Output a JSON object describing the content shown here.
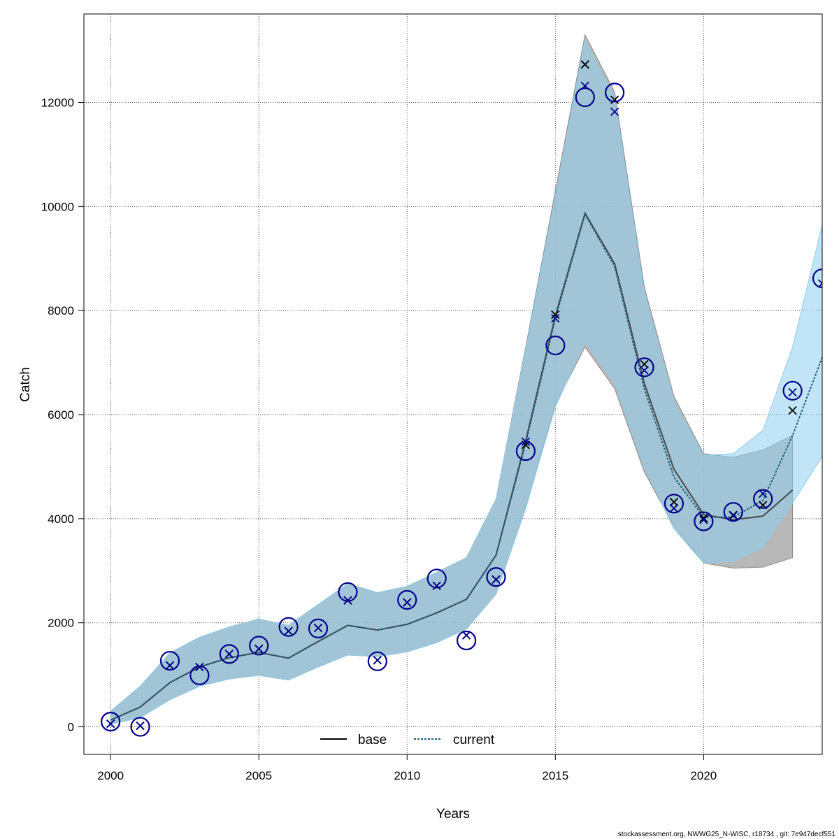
{
  "chart_data": {
    "type": "line",
    "xlabel": "Years",
    "ylabel": "Catch",
    "xlim": [
      1999.1,
      2024
    ],
    "ylim": [
      -530,
      13700
    ],
    "x_ticks": [
      2000,
      2005,
      2010,
      2015,
      2020
    ],
    "y_ticks": [
      0,
      2000,
      4000,
      6000,
      8000,
      10000,
      12000
    ],
    "grid": true,
    "legend_position": "bottom-center",
    "colors": {
      "base_line": "#4a4a4a",
      "base_band": "#a6a6a6",
      "current_line": "#1a5d78",
      "current_band": "#8ecdee",
      "observed": "#00008b",
      "base_pred": "#000000",
      "current_pred": "#00008b"
    },
    "series": [
      {
        "name": "base",
        "x": [
          2000,
          2001,
          2002,
          2003,
          2004,
          2005,
          2006,
          2007,
          2008,
          2009,
          2010,
          2011,
          2012,
          2013,
          2014,
          2015,
          2016,
          2017,
          2018,
          2019,
          2020,
          2021,
          2022,
          2023
        ],
        "values": [
          130,
          380,
          850,
          1150,
          1330,
          1430,
          1320,
          1640,
          1950,
          1860,
          1970,
          2190,
          2450,
          3300,
          5500,
          7900,
          9870,
          8900,
          6600,
          4950,
          4080,
          3980,
          4050,
          4550
        ],
        "lower": [
          50,
          180,
          520,
          780,
          920,
          990,
          900,
          1150,
          1380,
          1350,
          1440,
          1620,
          1880,
          2550,
          4200,
          6200,
          7300,
          6500,
          4900,
          3850,
          3150,
          3050,
          3070,
          3250
        ],
        "upper": [
          300,
          780,
          1420,
          1720,
          1920,
          2070,
          1950,
          2350,
          2750,
          2580,
          2700,
          2970,
          3250,
          4380,
          7300,
          10300,
          13300,
          12200,
          8450,
          6350,
          5250,
          5180,
          5320,
          5600
        ],
        "predicted": [
          60,
          20,
          1180,
          1150,
          1400,
          1500,
          1840,
          1900,
          2430,
          1280,
          2390,
          2710,
          1760,
          2830,
          5420,
          7920,
          12730,
          12050,
          6970,
          4320,
          4010,
          4070,
          4260,
          6080
        ]
      },
      {
        "name": "current",
        "x": [
          2000,
          2001,
          2002,
          2003,
          2004,
          2005,
          2006,
          2007,
          2008,
          2009,
          2010,
          2011,
          2012,
          2013,
          2014,
          2015,
          2016,
          2017,
          2018,
          2019,
          2020,
          2021,
          2022,
          2023,
          2024
        ],
        "values": [
          130,
          380,
          850,
          1150,
          1330,
          1430,
          1320,
          1640,
          1950,
          1860,
          1970,
          2190,
          2450,
          3300,
          5450,
          7850,
          9850,
          8850,
          6500,
          4800,
          4030,
          4030,
          4350,
          5600,
          7100
        ],
        "lower": [
          50,
          180,
          520,
          780,
          920,
          990,
          900,
          1150,
          1380,
          1350,
          1440,
          1620,
          1880,
          2550,
          4200,
          6150,
          7400,
          6600,
          5000,
          3800,
          3150,
          3180,
          3450,
          4300,
          5200
        ],
        "upper": [
          300,
          780,
          1420,
          1720,
          1920,
          2070,
          1950,
          2350,
          2750,
          2580,
          2700,
          2970,
          3250,
          4380,
          7250,
          10200,
          13200,
          12100,
          8350,
          6250,
          5220,
          5250,
          5700,
          7300,
          9650
        ],
        "predicted": [
          60,
          20,
          1180,
          1150,
          1400,
          1500,
          1840,
          1900,
          2430,
          1280,
          2390,
          2710,
          1760,
          2830,
          5480,
          7850,
          12320,
          11820,
          6850,
          4200,
          3980,
          4060,
          4480,
          6430,
          8520
        ],
        "observed": [
          100,
          0,
          1270,
          990,
          1400,
          1560,
          1920,
          1890,
          2590,
          1260,
          2440,
          2850,
          1660,
          2880,
          5300,
          7330,
          12100,
          12190,
          6910,
          4290,
          3950,
          4130,
          4380,
          6460,
          8620
        ]
      }
    ]
  },
  "legend": {
    "base_label": "base",
    "current_label": "current"
  },
  "footer": "stockassessment.org, NWWG25_N-WISC, r18734 , git: 7e947decf551"
}
